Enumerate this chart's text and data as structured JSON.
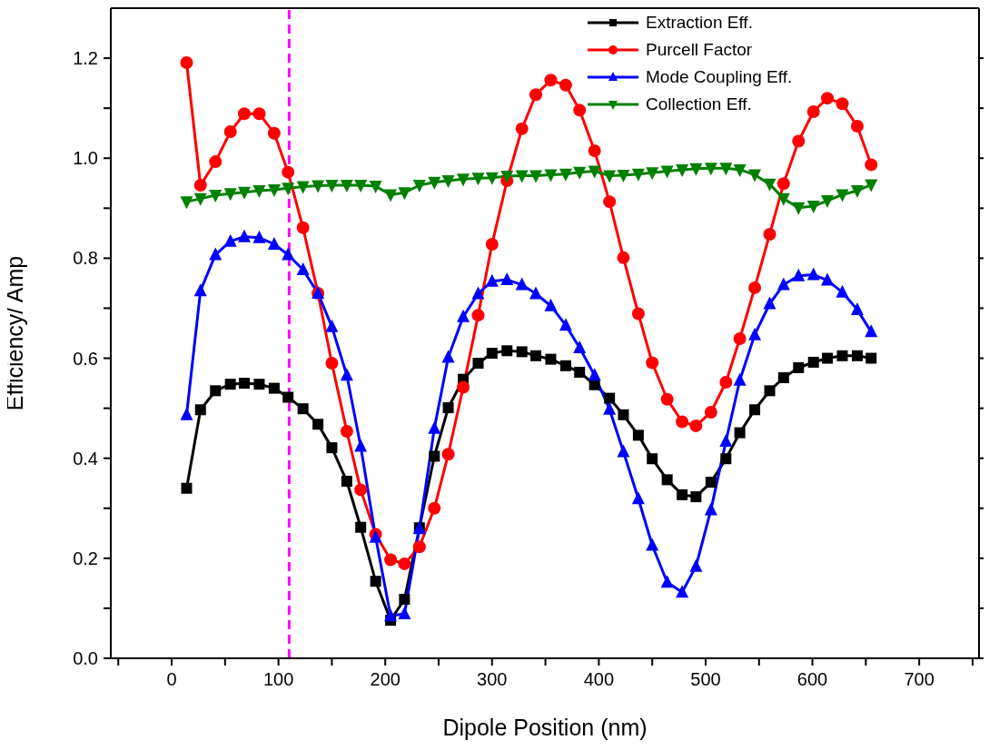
{
  "chart_data": {
    "type": "line",
    "xlabel": "Dipole Position (nm)",
    "ylabel": "Efficiency/ Amp",
    "x": [
      14,
      27,
      41,
      55,
      68,
      82,
      96,
      109,
      123,
      137,
      150,
      164,
      177,
      191,
      205,
      218,
      232,
      246,
      259,
      273,
      287,
      300,
      314,
      328,
      341,
      355,
      369,
      382,
      396,
      410,
      423,
      437,
      450,
      464,
      478,
      491,
      505,
      519,
      532,
      546,
      560,
      573,
      587,
      601,
      614,
      628,
      642,
      655
    ],
    "series": [
      {
        "name": "Extraction Eff.",
        "color": "#000000",
        "marker": "square",
        "values": [
          0.34,
          0.497,
          0.535,
          0.548,
          0.55,
          0.548,
          0.54,
          0.522,
          0.499,
          0.468,
          0.421,
          0.354,
          0.262,
          0.154,
          0.076,
          0.118,
          0.261,
          0.404,
          0.501,
          0.558,
          0.59,
          0.61,
          0.615,
          0.613,
          0.605,
          0.598,
          0.585,
          0.572,
          0.547,
          0.52,
          0.487,
          0.446,
          0.399,
          0.357,
          0.327,
          0.323,
          0.352,
          0.399,
          0.451,
          0.497,
          0.535,
          0.561,
          0.581,
          0.592,
          0.6,
          0.605,
          0.605,
          0.6
        ]
      },
      {
        "name": "Purcell Factor",
        "color": "#ff0000",
        "marker": "circle",
        "values": [
          1.191,
          0.946,
          0.993,
          1.053,
          1.089,
          1.089,
          1.05,
          0.972,
          0.861,
          0.73,
          0.59,
          0.454,
          0.337,
          0.248,
          0.197,
          0.189,
          0.223,
          0.3,
          0.408,
          0.542,
          0.686,
          0.828,
          0.955,
          1.059,
          1.127,
          1.156,
          1.146,
          1.096,
          1.015,
          0.913,
          0.801,
          0.689,
          0.591,
          0.518,
          0.473,
          0.465,
          0.492,
          0.552,
          0.639,
          0.741,
          0.848,
          0.949,
          1.034,
          1.093,
          1.12,
          1.109,
          1.064,
          0.987
        ]
      },
      {
        "name": "Mode Coupling Eff.",
        "color": "#0000ff",
        "marker": "triangle",
        "values": [
          0.487,
          0.735,
          0.807,
          0.834,
          0.843,
          0.841,
          0.828,
          0.807,
          0.777,
          0.73,
          0.663,
          0.566,
          0.424,
          0.242,
          0.085,
          0.089,
          0.259,
          0.46,
          0.602,
          0.683,
          0.729,
          0.754,
          0.757,
          0.747,
          0.729,
          0.705,
          0.666,
          0.621,
          0.566,
          0.498,
          0.413,
          0.319,
          0.226,
          0.152,
          0.132,
          0.184,
          0.297,
          0.434,
          0.556,
          0.647,
          0.709,
          0.747,
          0.765,
          0.767,
          0.756,
          0.732,
          0.697,
          0.653
        ]
      },
      {
        "name": "Collection Eff.",
        "color": "#008000",
        "marker": "triangle-down",
        "values": [
          0.913,
          0.919,
          0.926,
          0.929,
          0.932,
          0.935,
          0.937,
          0.94,
          0.943,
          0.945,
          0.946,
          0.946,
          0.946,
          0.944,
          0.927,
          0.931,
          0.946,
          0.952,
          0.955,
          0.958,
          0.96,
          0.961,
          0.964,
          0.965,
          0.965,
          0.967,
          0.968,
          0.972,
          0.974,
          0.965,
          0.966,
          0.968,
          0.971,
          0.974,
          0.977,
          0.979,
          0.98,
          0.98,
          0.977,
          0.967,
          0.948,
          0.919,
          0.901,
          0.904,
          0.915,
          0.927,
          0.935,
          0.947
        ]
      }
    ],
    "xlim": [
      -57,
      756
    ],
    "xticks": [
      {
        "value": -50,
        "label": null
      },
      0,
      {
        "value": 50,
        "label": null
      },
      100,
      {
        "value": 150,
        "label": null
      },
      200,
      {
        "value": 250,
        "label": null
      },
      300,
      {
        "value": 350,
        "label": null
      },
      400,
      {
        "value": 450,
        "label": null
      },
      500,
      {
        "value": 550,
        "label": null
      },
      600,
      {
        "value": 650,
        "label": null
      },
      700,
      {
        "value": 750,
        "label": null
      }
    ],
    "ylim": [
      0,
      1.3
    ],
    "yticks": [
      {
        "value": 0,
        "label": "0.0"
      },
      {
        "value": 0.1,
        "label": null
      },
      {
        "value": 0.2,
        "label": "0.2"
      },
      {
        "value": 0.3,
        "label": null
      },
      {
        "value": 0.4,
        "label": "0.4"
      },
      {
        "value": 0.5,
        "label": null
      },
      {
        "value": 0.6,
        "label": "0.6"
      },
      {
        "value": 0.7,
        "label": null
      },
      {
        "value": 0.8,
        "label": "0.8"
      },
      {
        "value": 0.9,
        "label": null
      },
      {
        "value": 1.0,
        "label": "1.0"
      },
      {
        "value": 1.1,
        "label": null
      },
      {
        "value": 1.2,
        "label": "1.2"
      }
    ],
    "ref_lines": [
      {
        "axis": "x",
        "value": 110,
        "color": "#ff00ff",
        "line_style": "dashed"
      }
    ],
    "grid": false,
    "legend": "top right",
    "line_style": "solid"
  }
}
